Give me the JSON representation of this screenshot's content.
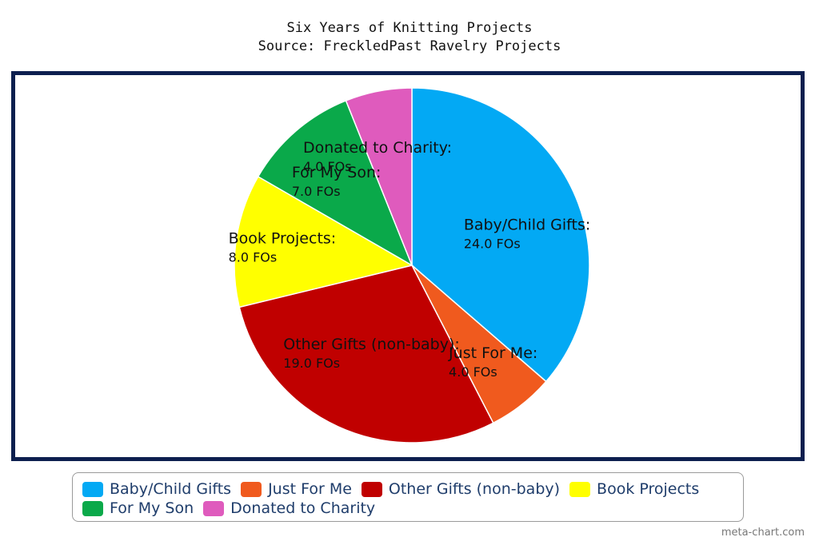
{
  "chart_data": {
    "type": "pie",
    "title": "Six Years of Knitting Projects",
    "subtitle": "Source: FreckledPast Ravelry Projects",
    "value_suffix": " FOs",
    "slices": [
      {
        "label": "Baby/Child Gifts",
        "value": 24.0,
        "color": "#03a9f4",
        "value_text": "24.0 FOs"
      },
      {
        "label": "Just For Me",
        "value": 4.0,
        "color": "#f05a1e",
        "value_text": "4.0 FOs"
      },
      {
        "label": "Other Gifts (non-baby)",
        "value": 19.0,
        "color": "#c00000",
        "value_text": "19.0 FOs"
      },
      {
        "label": "Book Projects",
        "value": 8.0,
        "color": "#ffff00",
        "value_text": "8.0 FOs"
      },
      {
        "label": "For My Son",
        "value": 7.0,
        "color": "#0aa94a",
        "value_text": "7.0 FOs"
      },
      {
        "label": "Donated to Charity",
        "value": 4.0,
        "color": "#df5bbd",
        "value_text": "4.0 FOs"
      }
    ],
    "legend_position": "bottom"
  },
  "watermark": "meta-chart.com"
}
